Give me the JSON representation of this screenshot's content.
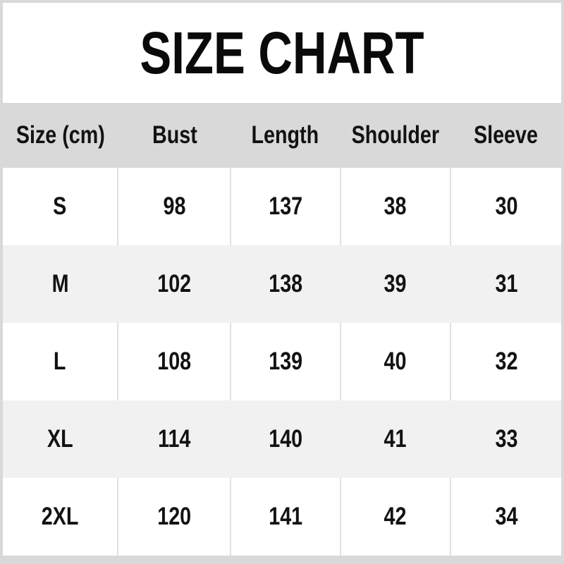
{
  "title": "SIZE CHART",
  "colors": {
    "page_background": "#d9d9d9",
    "panel_background": "#ffffff",
    "header_background": "#d9d9d9",
    "stripe_background": "#f1f1f1",
    "divider": "#e2e2e2",
    "text": "#121212"
  },
  "chart_data": {
    "type": "table",
    "title": "SIZE CHART",
    "columns": [
      "Size (cm)",
      "Bust",
      "Length",
      "Shoulder",
      "Sleeve"
    ],
    "rows": [
      [
        "S",
        "98",
        "137",
        "38",
        "30"
      ],
      [
        "M",
        "102",
        "138",
        "39",
        "31"
      ],
      [
        "L",
        "108",
        "139",
        "40",
        "32"
      ],
      [
        "XL",
        "114",
        "140",
        "41",
        "33"
      ],
      [
        "2XL",
        "120",
        "141",
        "42",
        "34"
      ]
    ]
  }
}
